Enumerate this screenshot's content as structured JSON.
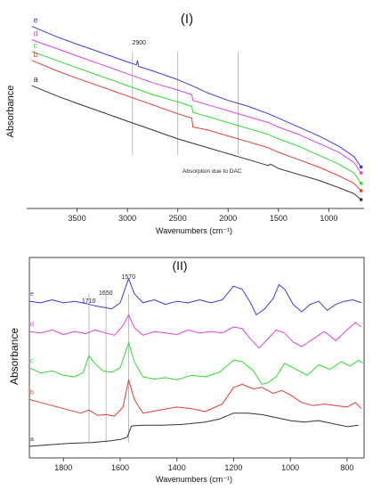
{
  "chart_data": [
    {
      "type": "line",
      "title": "(I)",
      "xlabel": "Wavenumbers (cm⁻¹)",
      "ylabel": "Absorbance",
      "x_reversed": true,
      "xlim": [
        4000,
        650
      ],
      "x_ticks": [
        3500,
        3000,
        2500,
        2000,
        1500,
        1000
      ],
      "grid": false,
      "annotations": [
        {
          "text": "2900",
          "x": 2900
        },
        {
          "text": "Absorption due to DAC",
          "x": 2200
        }
      ],
      "reference_lines_x": [
        2950,
        2500,
        1900
      ],
      "series": [
        {
          "name": "a",
          "color": "#333333",
          "x": [
            3950,
            3700,
            3500,
            3250,
            3000,
            2750,
            2500,
            2350,
            2200,
            2000,
            1800,
            1600,
            1580,
            1500,
            1300,
            1100,
            900,
            750,
            680
          ],
          "y": [
            0.78,
            0.71,
            0.66,
            0.6,
            0.54,
            0.48,
            0.42,
            0.39,
            0.36,
            0.32,
            0.28,
            0.24,
            0.25,
            0.22,
            0.18,
            0.14,
            0.09,
            0.05,
            0.01
          ]
        },
        {
          "name": "b",
          "color": "#e03c31",
          "x": [
            3950,
            3700,
            3500,
            3250,
            3000,
            2750,
            2500,
            2360,
            2350,
            2200,
            2000,
            1800,
            1600,
            1500,
            1300,
            1100,
            900,
            750,
            680
          ],
          "y": [
            0.95,
            0.88,
            0.83,
            0.77,
            0.71,
            0.65,
            0.59,
            0.56,
            0.5,
            0.48,
            0.44,
            0.4,
            0.36,
            0.33,
            0.28,
            0.23,
            0.17,
            0.12,
            0.07
          ]
        },
        {
          "name": "c",
          "color": "#2fdc2f",
          "x": [
            3950,
            3700,
            3500,
            3250,
            3000,
            2750,
            2500,
            2360,
            2350,
            2200,
            2000,
            1800,
            1600,
            1500,
            1300,
            1100,
            900,
            750,
            680
          ],
          "y": [
            1.01,
            0.95,
            0.9,
            0.84,
            0.78,
            0.72,
            0.67,
            0.64,
            0.6,
            0.57,
            0.53,
            0.49,
            0.45,
            0.42,
            0.37,
            0.31,
            0.25,
            0.19,
            0.12
          ]
        },
        {
          "name": "d",
          "color": "#e040e0",
          "x": [
            3950,
            3700,
            3500,
            3250,
            3000,
            2750,
            2500,
            2360,
            2350,
            2200,
            2000,
            1800,
            1600,
            1500,
            1300,
            1100,
            900,
            750,
            680
          ],
          "y": [
            1.09,
            1.03,
            0.98,
            0.92,
            0.86,
            0.8,
            0.75,
            0.72,
            0.68,
            0.65,
            0.61,
            0.57,
            0.53,
            0.5,
            0.45,
            0.39,
            0.33,
            0.26,
            0.19
          ]
        },
        {
          "name": "e",
          "color": "#3c3cdc",
          "x": [
            3950,
            3700,
            3500,
            3250,
            3000,
            2910,
            2900,
            2890,
            2750,
            2500,
            2360,
            2200,
            2000,
            1800,
            1600,
            1500,
            1300,
            1100,
            900,
            750,
            680
          ],
          "y": [
            1.18,
            1.11,
            1.06,
            1.0,
            0.94,
            0.92,
            0.95,
            0.91,
            0.88,
            0.82,
            0.78,
            0.73,
            0.68,
            0.64,
            0.59,
            0.56,
            0.5,
            0.44,
            0.37,
            0.3,
            0.23
          ]
        }
      ]
    },
    {
      "type": "line",
      "title": "(II)",
      "xlabel": "Wavenumbers (cm⁻¹)",
      "ylabel": "Absorbance",
      "x_reversed": true,
      "xlim": [
        1920,
        740
      ],
      "x_ticks": [
        1800,
        1600,
        1400,
        1200,
        1000,
        800
      ],
      "grid": false,
      "annotations": [
        {
          "text": "1710",
          "x": 1710
        },
        {
          "text": "1650",
          "x": 1650
        },
        {
          "text": "1570",
          "x": 1570
        }
      ],
      "reference_lines_x": [
        1710,
        1650,
        1570
      ],
      "series": [
        {
          "name": "a",
          "color": "#333333",
          "x": [
            1920,
            1850,
            1780,
            1700,
            1640,
            1600,
            1575,
            1560,
            1520,
            1450,
            1380,
            1300,
            1250,
            1200,
            1150,
            1100,
            1050,
            1000,
            950,
            900,
            850,
            800,
            760
          ],
          "y": [
            0.08,
            0.1,
            0.12,
            0.13,
            0.15,
            0.17,
            0.2,
            0.35,
            0.36,
            0.36,
            0.37,
            0.4,
            0.44,
            0.52,
            0.52,
            0.5,
            0.46,
            0.42,
            0.4,
            0.42,
            0.38,
            0.34,
            0.36
          ]
        },
        {
          "name": "b",
          "color": "#e03c31",
          "x": [
            1920,
            1880,
            1840,
            1780,
            1740,
            1710,
            1680,
            1650,
            1620,
            1590,
            1570,
            1550,
            1520,
            1460,
            1400,
            1350,
            1300,
            1240,
            1200,
            1170,
            1130,
            1100,
            1060,
            1030,
            1000,
            960,
            920,
            880,
            840,
            800,
            770,
            750
          ],
          "y": [
            0.7,
            0.66,
            0.62,
            0.56,
            0.52,
            0.56,
            0.49,
            0.5,
            0.48,
            0.6,
            0.96,
            0.7,
            0.52,
            0.56,
            0.6,
            0.58,
            0.54,
            0.64,
            0.86,
            0.9,
            0.84,
            0.86,
            0.78,
            0.82,
            0.76,
            0.66,
            0.62,
            0.64,
            0.62,
            0.6,
            0.66,
            0.58
          ]
        },
        {
          "name": "c",
          "color": "#2fdc2f",
          "x": [
            1920,
            1880,
            1840,
            1800,
            1760,
            1730,
            1710,
            1690,
            1660,
            1630,
            1600,
            1570,
            1550,
            1520,
            1480,
            1440,
            1400,
            1350,
            1300,
            1250,
            1200,
            1170,
            1130,
            1100,
            1080,
            1050,
            1020,
            980,
            940,
            900,
            860,
            820,
            790,
            760,
            745
          ],
          "y": [
            1.12,
            1.05,
            1.08,
            1.02,
            1.0,
            1.06,
            1.28,
            1.18,
            1.08,
            1.06,
            1.12,
            1.45,
            1.2,
            1.0,
            0.97,
            0.99,
            0.96,
            1.02,
            1.0,
            1.06,
            1.22,
            1.2,
            1.08,
            0.9,
            0.92,
            1.0,
            1.18,
            1.1,
            1.02,
            1.16,
            1.1,
            1.2,
            1.14,
            1.22,
            1.18
          ]
        },
        {
          "name": "d",
          "color": "#e040e0",
          "x": [
            1920,
            1880,
            1840,
            1800,
            1760,
            1720,
            1690,
            1650,
            1620,
            1590,
            1570,
            1550,
            1520,
            1480,
            1440,
            1400,
            1360,
            1320,
            1280,
            1240,
            1200,
            1170,
            1140,
            1110,
            1080,
            1050,
            1020,
            990,
            960,
            920,
            880,
            840,
            800,
            770,
            750
          ],
          "y": [
            1.6,
            1.58,
            1.62,
            1.56,
            1.6,
            1.57,
            1.62,
            1.58,
            1.55,
            1.68,
            1.82,
            1.65,
            1.55,
            1.6,
            1.58,
            1.56,
            1.62,
            1.58,
            1.6,
            1.58,
            1.66,
            1.64,
            1.5,
            1.38,
            1.5,
            1.62,
            1.58,
            1.46,
            1.4,
            1.5,
            1.6,
            1.48,
            1.62,
            1.72,
            1.66
          ]
        },
        {
          "name": "e",
          "color": "#3c3cdc",
          "x": [
            1920,
            1880,
            1840,
            1800,
            1760,
            1720,
            1690,
            1660,
            1630,
            1600,
            1570,
            1550,
            1520,
            1480,
            1440,
            1400,
            1360,
            1320,
            1280,
            1240,
            1200,
            1170,
            1140,
            1120,
            1090,
            1060,
            1040,
            1020,
            990,
            960,
            930,
            900,
            870,
            840,
            810,
            780,
            750
          ],
          "y": [
            2.0,
            1.98,
            2.02,
            1.98,
            2.0,
            1.97,
            1.94,
            1.92,
            1.9,
            1.98,
            2.3,
            2.1,
            1.98,
            2.02,
            1.96,
            2.0,
            1.98,
            2.02,
            1.98,
            2.02,
            2.2,
            2.16,
            1.98,
            1.82,
            1.9,
            2.04,
            2.22,
            2.16,
            1.96,
            1.86,
            1.96,
            2.0,
            1.88,
            1.96,
            2.0,
            2.02,
            1.98
          ]
        }
      ]
    }
  ]
}
